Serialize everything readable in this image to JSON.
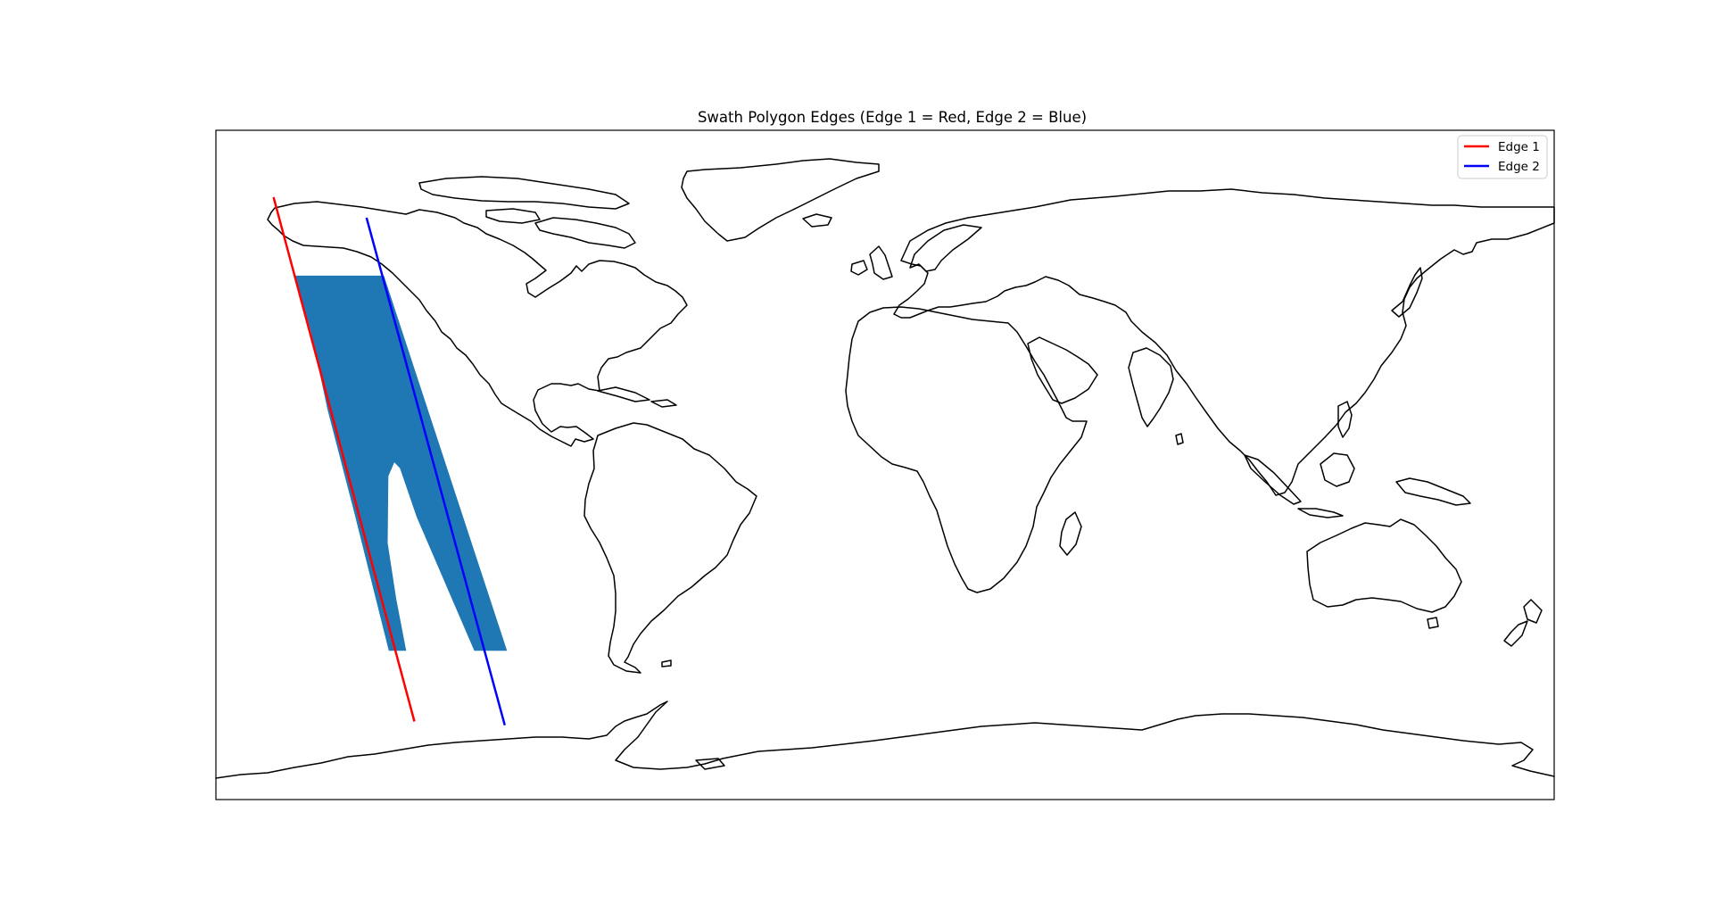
{
  "title": "Swath Polygon Edges (Edge 1 = Red, Edge 2 = Blue)",
  "colors": {
    "edge1": "#ff0000",
    "edge2": "#0000ff",
    "swath": "#1f77b4",
    "coastline": "#000000"
  },
  "legend": {
    "placement": "top-right",
    "items": [
      {
        "label": "Edge 1",
        "color": "#ff0000"
      },
      {
        "label": "Edge 2",
        "color": "#0000ff"
      }
    ]
  },
  "map": {
    "projection": "PlateCarree",
    "extent": {
      "lon": [
        -180,
        180
      ],
      "lat": [
        -90,
        90
      ]
    },
    "edges": [
      {
        "name": "Edge 1",
        "color": "#ff0000",
        "coords": [
          [
            -164.5,
            72.0
          ],
          [
            -126.6,
            -69.0
          ]
        ]
      },
      {
        "name": "Edge 2",
        "color": "#0000ff",
        "coords": [
          [
            -139.5,
            66.5
          ],
          [
            -102.3,
            -70.0
          ]
        ]
      }
    ],
    "swath_outline": [
      [
        -158.8,
        50.9
      ],
      [
        -134.8,
        50.9
      ],
      [
        -101.7,
        -50.0
      ],
      [
        -110.5,
        -50.0
      ],
      [
        -126.0,
        -14.0
      ],
      [
        -130.5,
        -0.9
      ],
      [
        -132.0,
        0.7
      ],
      [
        -133.6,
        -3.0
      ],
      [
        -133.8,
        -21.0
      ],
      [
        -131.5,
        -36.0
      ],
      [
        -128.8,
        -50.0
      ],
      [
        -133.5,
        -50.0
      ],
      [
        -143.0,
        -12.0
      ],
      [
        -150.0,
        15.0
      ],
      [
        -154.5,
        36.0
      ]
    ]
  }
}
